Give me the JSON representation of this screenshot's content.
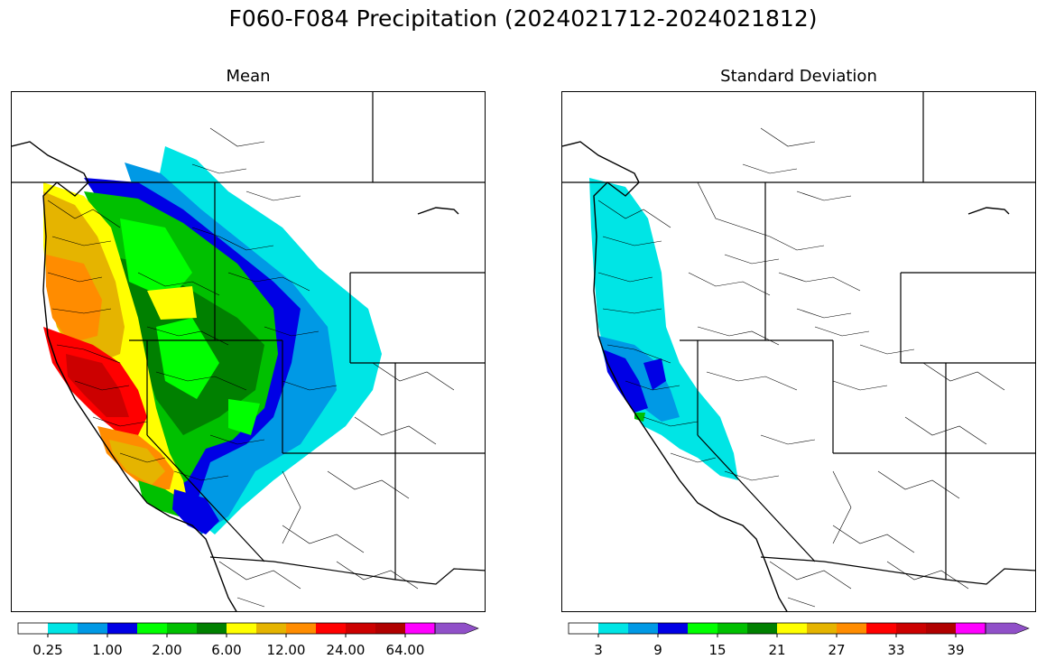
{
  "title": "F060-F084 Precipitation (2024021712-2024021812)",
  "panels": {
    "mean": {
      "title": "Mean",
      "colorbar_colors": [
        "#ffffff",
        "#00e5e5",
        "#0099e5",
        "#0000e5",
        "#00ff00",
        "#00c000",
        "#008000",
        "#ffff00",
        "#e5b400",
        "#ff8c00",
        "#ff0000",
        "#cc0000",
        "#b00000",
        "#ff00ff",
        "#9050c8"
      ],
      "tick_labels": [
        "0.25",
        "1.00",
        "2.00",
        "6.00",
        "12.00",
        "24.00",
        "64.00"
      ]
    },
    "stddev": {
      "title": "Standard Deviation",
      "colorbar_colors": [
        "#ffffff",
        "#00e5e5",
        "#0099e5",
        "#0000e5",
        "#00ff00",
        "#00c000",
        "#008000",
        "#ffff00",
        "#e5b400",
        "#ff8c00",
        "#ff0000",
        "#cc0000",
        "#b00000",
        "#ff00ff",
        "#9050c8"
      ],
      "tick_labels": [
        "3",
        "9",
        "15",
        "21",
        "27",
        "33",
        "39"
      ]
    }
  }
}
